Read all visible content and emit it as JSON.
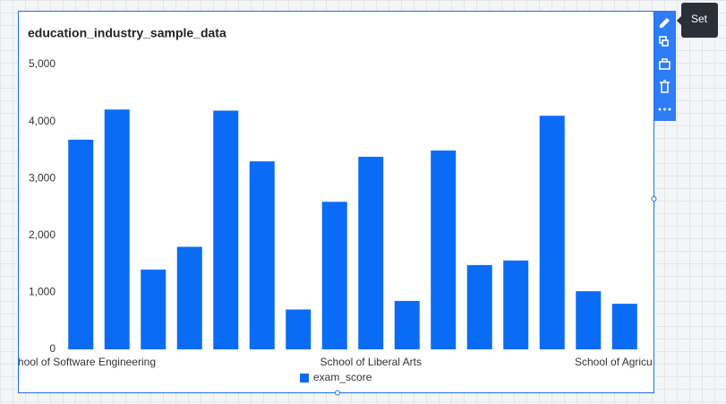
{
  "chart_data": {
    "type": "bar",
    "title": "education_industry_sample_data",
    "categories": [
      "hool of Software Engineering",
      null,
      null,
      null,
      null,
      null,
      null,
      null,
      "School of Liberal Arts",
      null,
      null,
      null,
      null,
      null,
      null,
      "School of Agricu"
    ],
    "series": [
      {
        "name": "exam_score",
        "color": "#0a6cf5",
        "values": [
          3680,
          4210,
          1400,
          1800,
          4190,
          3300,
          700,
          2590,
          3380,
          850,
          3490,
          1480,
          1560,
          4100,
          1020,
          800
        ]
      }
    ],
    "ylim": [
      0,
      5000
    ],
    "yticks": [
      {
        "value": 0,
        "label": "0"
      },
      {
        "value": 1000,
        "label": "1,000"
      },
      {
        "value": 2000,
        "label": "2,000"
      },
      {
        "value": 3000,
        "label": "3,000"
      },
      {
        "value": 4000,
        "label": "4,000"
      },
      {
        "value": 5000,
        "label": "5,000"
      }
    ],
    "grid": false
  },
  "tooltip": "Set"
}
